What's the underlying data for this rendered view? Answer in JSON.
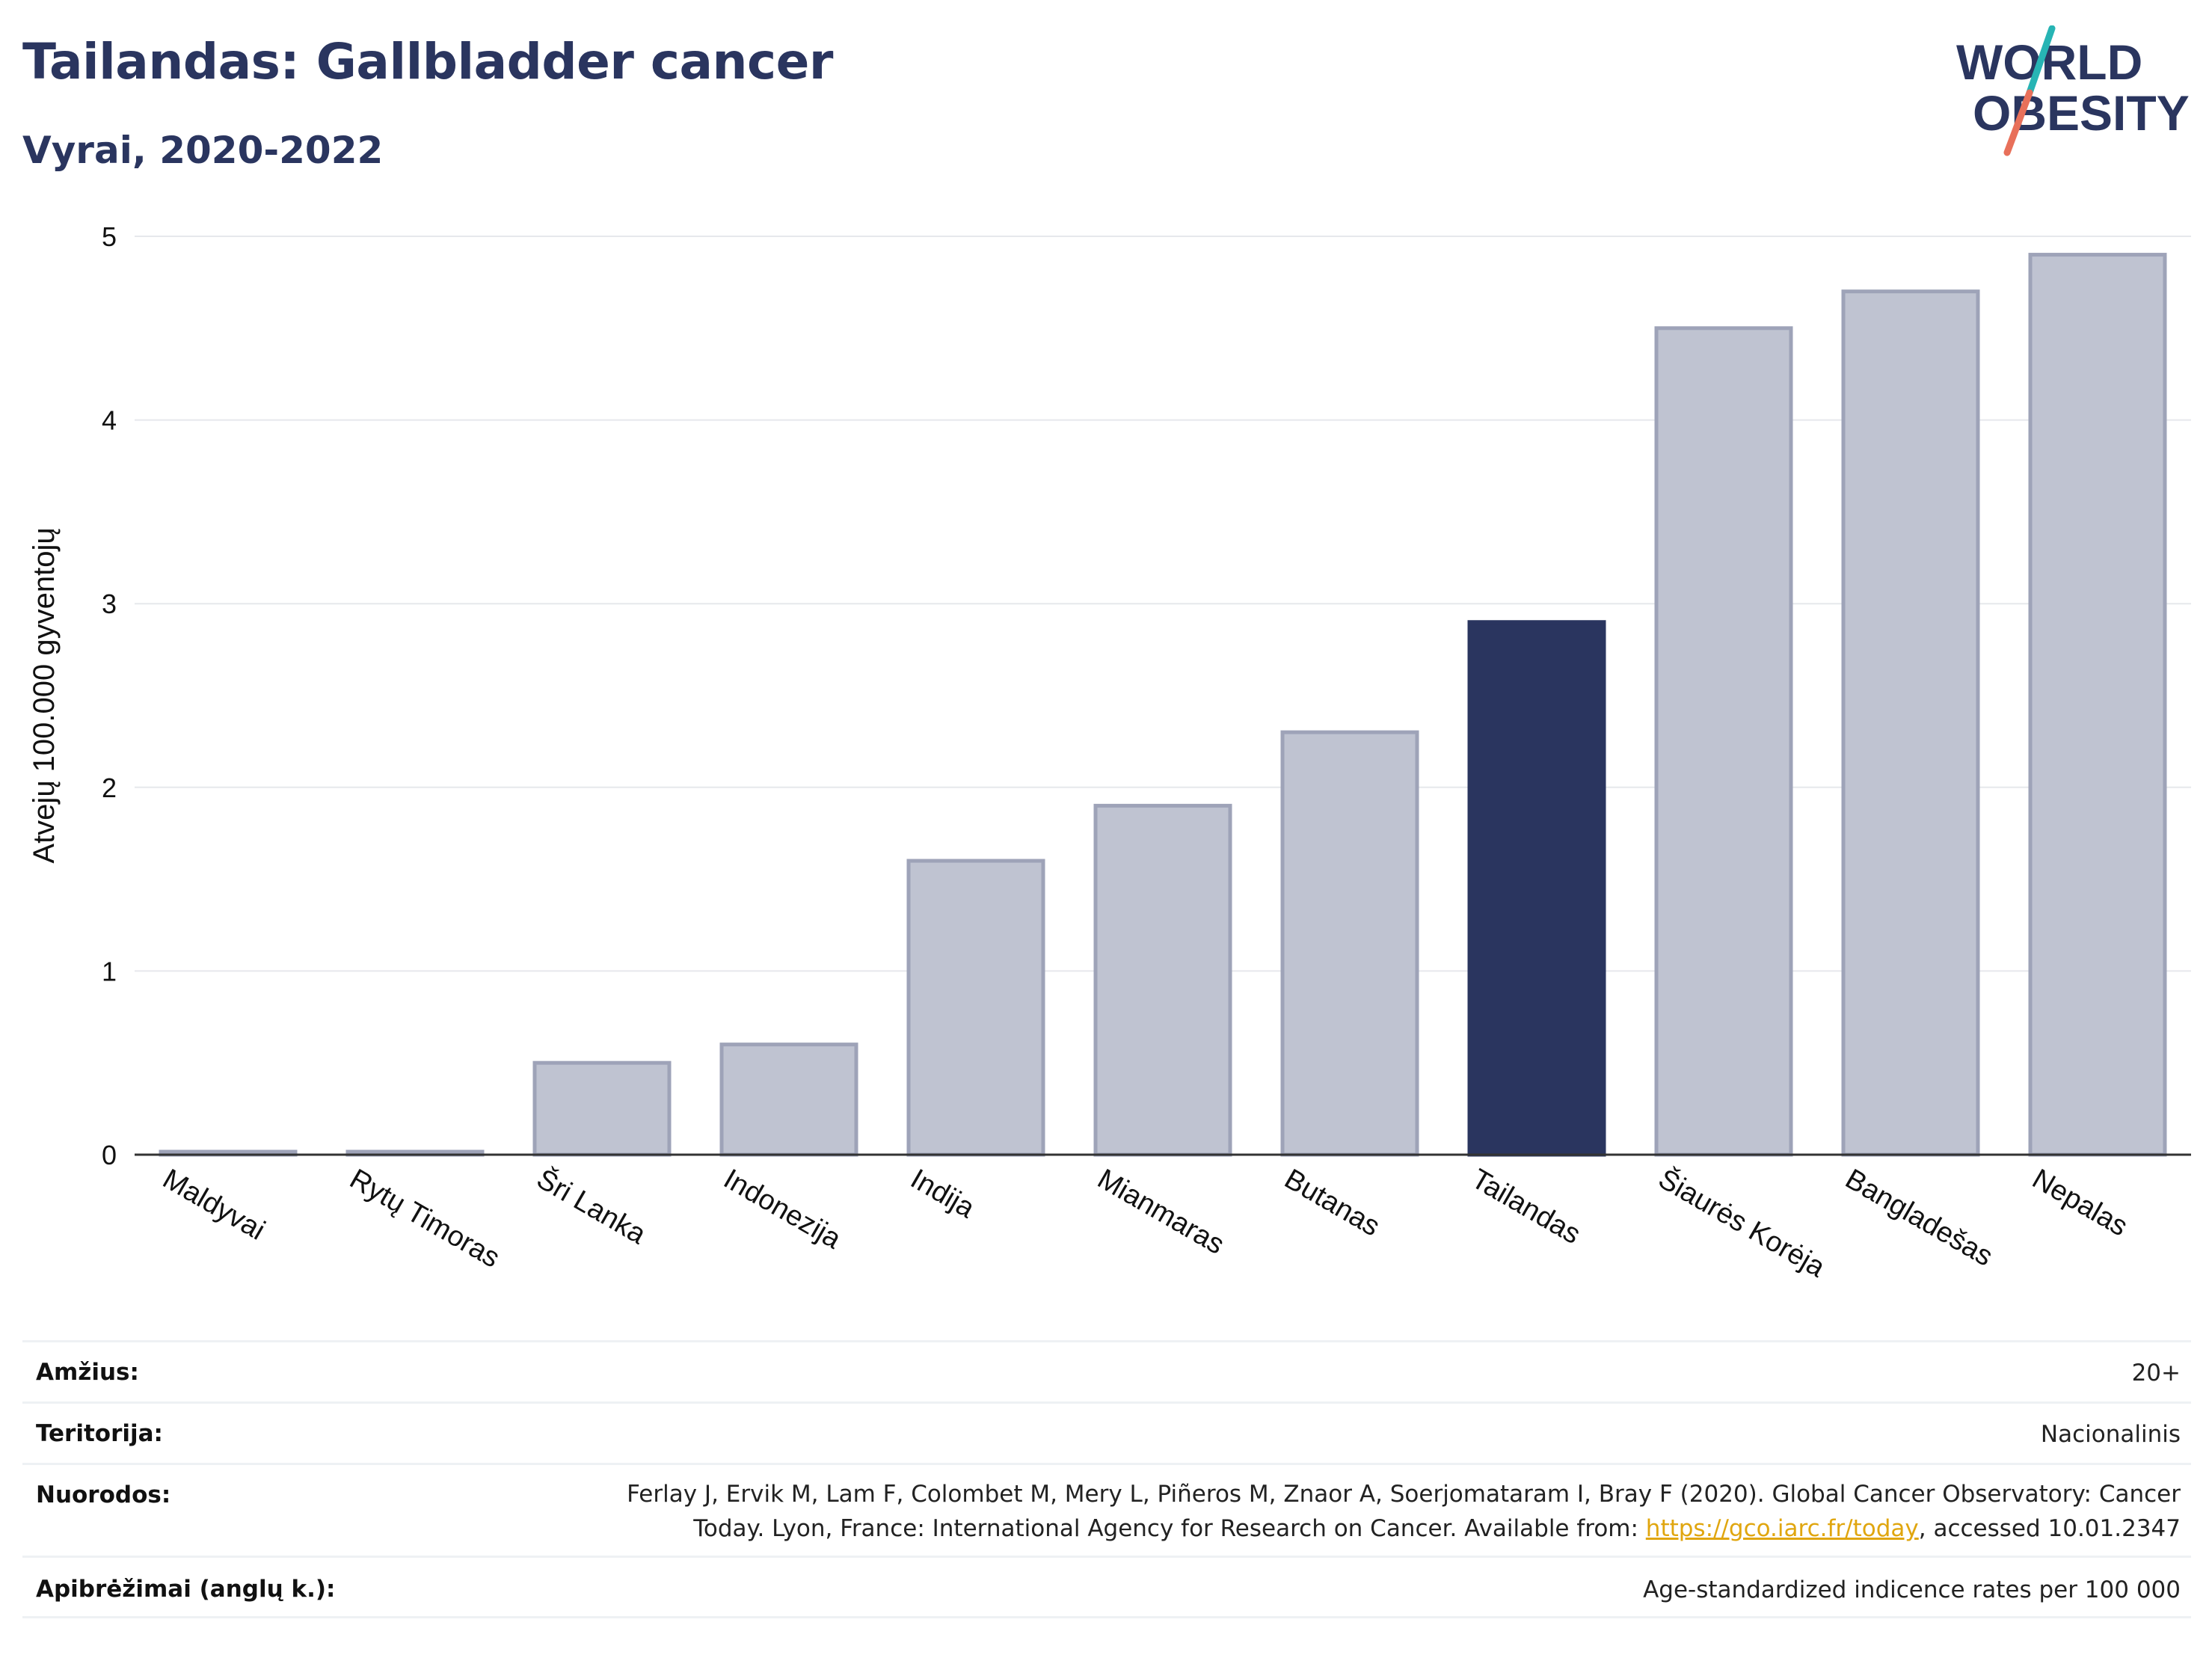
{
  "header": {
    "title": "Tailandas: Gallbladder cancer",
    "subtitle": "Vyrai, 2020-2022",
    "logo_line1": "WORLD",
    "logo_line2": "OBESITY"
  },
  "colors": {
    "highlight": "#2a355f",
    "other": "#bfc3d1",
    "other_border": "#9ea3b8",
    "grid": "#e6e8ec",
    "logo_teal": "#27b4b4",
    "logo_coral": "#e8705a"
  },
  "chart_data": {
    "type": "bar",
    "title": "Tailandas: Gallbladder cancer",
    "subtitle": "Vyrai, 2020-2022",
    "ylabel": "Atvejų 100.000 gyventojų",
    "xlabel": "",
    "ylim": [
      0,
      5
    ],
    "yticks": [
      0,
      1,
      2,
      3,
      4,
      5
    ],
    "grid": true,
    "categories": [
      "Maldyvai",
      "Rytų Timoras",
      "Šri Lanka",
      "Indonezija",
      "Indija",
      "Mianmaras",
      "Butanas",
      "Tailandas",
      "Šiaurės Korėja",
      "Bangladešas",
      "Nepalas"
    ],
    "values": [
      0.0,
      0.0,
      0.5,
      0.6,
      1.6,
      1.9,
      2.3,
      2.9,
      4.5,
      4.7,
      4.9
    ],
    "highlight": "Tailandas"
  },
  "info": {
    "age_label": "Amžius:",
    "age_value": "20+",
    "territory_label": "Teritorija:",
    "territory_value": "Nacionalinis",
    "refs_label": "Nuorodos:",
    "refs_line1": "Ferlay J, Ervik M, Lam F, Colombet M, Mery L, Piñeros M, Znaor A, Soerjomataram I, Bray F (2020). Global Cancer Observatory: Cancer",
    "refs_line2_pre": "Today. Lyon, France: International Agency for Research on Cancer. Available from: ",
    "refs_link": "https://gco.iarc.fr/today",
    "refs_line2_post": ", accessed 10.01.2347",
    "defs_label": "Apibrėžimai (anglų k.):",
    "defs_value": "Age-standardized indicence rates per 100 000"
  }
}
